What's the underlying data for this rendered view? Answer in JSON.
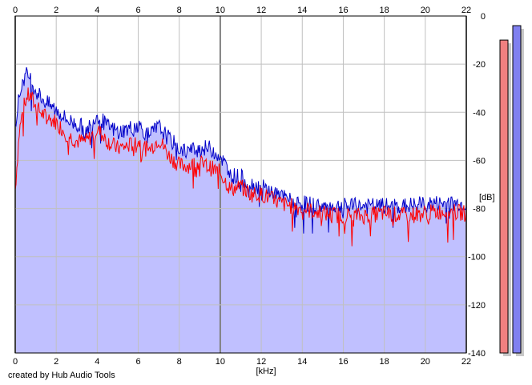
{
  "footer": {
    "credit": "created by Hub Audio Tools"
  },
  "colors": {
    "background": "#ffffff",
    "plot_background": "#ffffff",
    "fill": "#c0c0ff",
    "grid": "#c0c0c0",
    "grid_major": "#808080",
    "channel_left": "#ff0000",
    "channel_right": "#0000c8",
    "meter_left": "#f08080",
    "meter_right": "#8080f0",
    "meter_shadow": "#c8c8c8"
  },
  "chart_data": {
    "type": "area",
    "xlabel": "[kHz]",
    "ylabel": "[dB]",
    "xlim": [
      0,
      22
    ],
    "ylim": [
      -140,
      0
    ],
    "x_ticks": [
      "0",
      "2",
      "4",
      "6",
      "8",
      "10",
      "12",
      "14",
      "16",
      "18",
      "20",
      "22"
    ],
    "y_ticks": [
      "0",
      "-20",
      "-40",
      "-60",
      "-80",
      "-100",
      "-120",
      "-140"
    ],
    "grid": true,
    "series": [
      {
        "channel": "left",
        "color": "#ff0000",
        "x": [
          0,
          0.2,
          0.4,
          0.6,
          0.8,
          1.0,
          1.5,
          2.0,
          2.5,
          3.0,
          3.5,
          4.0,
          4.5,
          5.0,
          5.5,
          6.0,
          6.5,
          7.0,
          7.5,
          8.0,
          8.5,
          9.0,
          9.5,
          10.0,
          10.5,
          11.0,
          11.5,
          12.0,
          12.5,
          13.0,
          13.5,
          14.0,
          15.0,
          16.0,
          17.0,
          18.0,
          19.0,
          20.0,
          21.0,
          22.0
        ],
        "y": [
          -72,
          -48,
          -38,
          -33,
          -34,
          -38,
          -42,
          -44,
          -49,
          -52,
          -52,
          -47,
          -52,
          -55,
          -54,
          -52,
          -56,
          -51,
          -58,
          -62,
          -62,
          -61,
          -63,
          -65,
          -72,
          -71,
          -74,
          -74,
          -76,
          -78,
          -79,
          -80,
          -82,
          -83,
          -83,
          -82,
          -83,
          -82,
          -81,
          -82
        ]
      },
      {
        "channel": "right",
        "color": "#0000c8",
        "x": [
          0,
          0.2,
          0.4,
          0.6,
          0.8,
          1.0,
          1.5,
          2.0,
          2.5,
          3.0,
          3.5,
          4.0,
          4.5,
          5.0,
          5.5,
          6.0,
          6.5,
          7.0,
          7.5,
          8.0,
          8.5,
          9.0,
          9.5,
          10.0,
          10.5,
          11.0,
          11.5,
          12.0,
          12.5,
          13.0,
          13.5,
          14.0,
          15.0,
          16.0,
          17.0,
          18.0,
          19.0,
          20.0,
          21.0,
          22.0
        ],
        "y": [
          -45,
          -33,
          -26,
          -24,
          -27,
          -31,
          -36,
          -39,
          -43,
          -45,
          -47,
          -41,
          -46,
          -48,
          -47,
          -45,
          -50,
          -46,
          -51,
          -55,
          -56,
          -55,
          -55,
          -58,
          -66,
          -67,
          -70,
          -71,
          -73,
          -75,
          -77,
          -78,
          -79,
          -79,
          -79,
          -79,
          -79,
          -78,
          -78,
          -78
        ]
      }
    ],
    "meters": [
      {
        "channel": "left",
        "color": "#f08080",
        "level_db": -10
      },
      {
        "channel": "right",
        "color": "#8080f0",
        "level_db": -4
      }
    ]
  }
}
